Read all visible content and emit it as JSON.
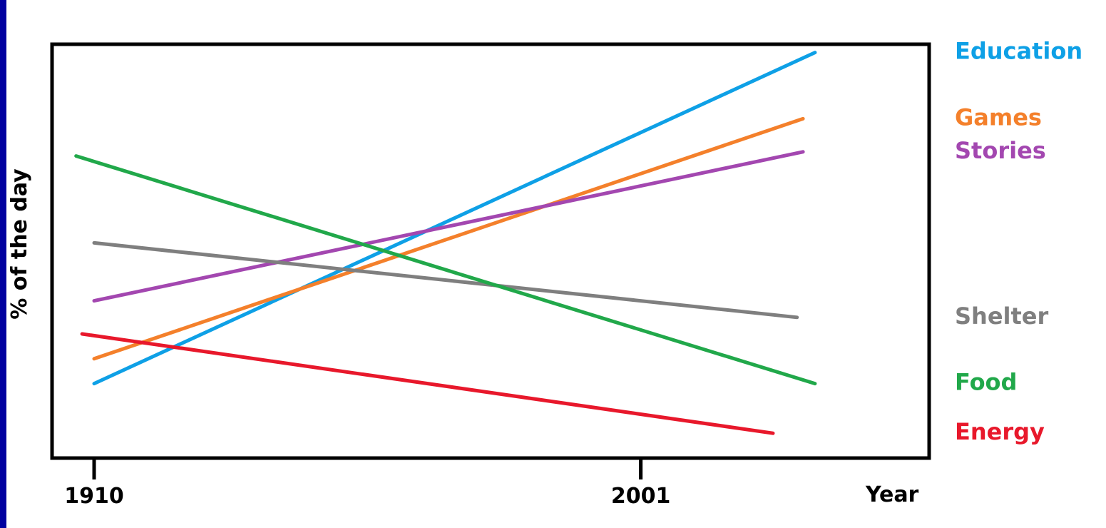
{
  "chart_data": {
    "type": "line",
    "title": "",
    "xlabel": "Year",
    "ylabel": "% of the day",
    "x_ticks": [
      {
        "value": 1910,
        "label": "1910"
      },
      {
        "value": 2001,
        "label": "2001"
      }
    ],
    "y_ticks": [],
    "y_scale": "unlabeled",
    "xlim": [
      1903,
      2049
    ],
    "ylim": [
      0,
      100
    ],
    "grid": false,
    "legend": "right-of-plot, labels aligned with line ends",
    "series": [
      {
        "name": "Education",
        "color": "#0ea0e6",
        "points": [
          [
            1910,
            18
          ],
          [
            2030,
            98
          ]
        ]
      },
      {
        "name": "Games",
        "color": "#f4802b",
        "points": [
          [
            1910,
            24
          ],
          [
            2028,
            82
          ]
        ]
      },
      {
        "name": "Stories",
        "color": "#a347b0",
        "points": [
          [
            1910,
            38
          ],
          [
            2028,
            74
          ]
        ]
      },
      {
        "name": "Shelter",
        "color": "#7f7f7f",
        "points": [
          [
            1910,
            52
          ],
          [
            2027,
            34
          ]
        ]
      },
      {
        "name": "Food",
        "color": "#21a84a",
        "points": [
          [
            1907,
            73
          ],
          [
            2030,
            18
          ]
        ]
      },
      {
        "name": "Energy",
        "color": "#e8182b",
        "points": [
          [
            1908,
            30
          ],
          [
            2023,
            6
          ]
        ]
      }
    ]
  }
}
